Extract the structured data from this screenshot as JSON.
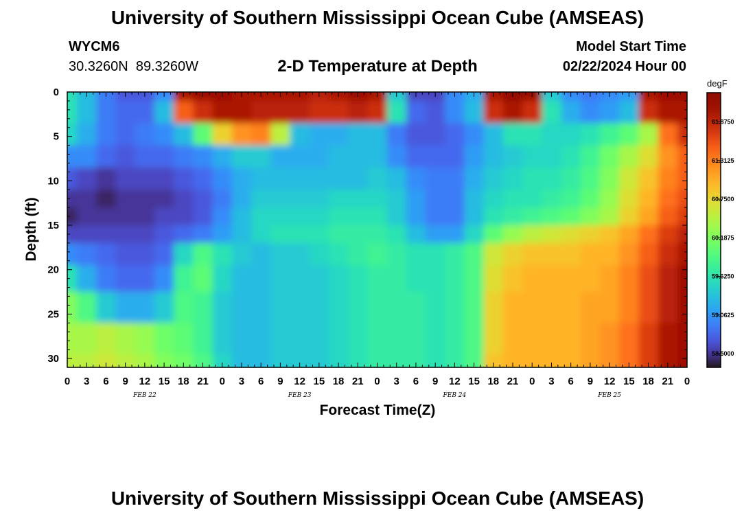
{
  "header": {
    "title": "University of Southern Mississippi Ocean Cube (AMSEAS)",
    "station_id": "WYCM6",
    "station_coords": "30.3260N  89.3260W",
    "plot_title": "2-D Temperature at Depth",
    "model_start_label": "Model Start Time",
    "model_start_value": "02/22/2024 Hour 00"
  },
  "footer": {
    "title": "University of Southern Mississippi Ocean Cube (AMSEAS)"
  },
  "colorbar": {
    "unit": "degF",
    "tick_labels": [
      "61.8750",
      "61.3125",
      "60.7500",
      "60.1875",
      "59.6250",
      "59.0625",
      "58.5000"
    ],
    "tick_values": [
      61.875,
      61.3125,
      60.75,
      60.1875,
      59.625,
      59.0625,
      58.5
    ],
    "range": [
      58.3,
      62.3
    ]
  },
  "chart_data": {
    "type": "heatmap",
    "title": "2-D Temperature at Depth",
    "xlabel": "Forecast Time(Z)",
    "ylabel": "Depth (ft)",
    "x_tick_labels": [
      "0",
      "3",
      "6",
      "9",
      "12",
      "15",
      "18",
      "21",
      "0",
      "3",
      "6",
      "9",
      "12",
      "15",
      "18",
      "21",
      "0",
      "3",
      "6",
      "9",
      "12",
      "15",
      "18",
      "21",
      "0",
      "3",
      "6",
      "9",
      "12",
      "15",
      "18",
      "21",
      "0"
    ],
    "day_labels": [
      {
        "label": "FEB 22",
        "hour": 12
      },
      {
        "label": "FEB 23",
        "hour": 36
      },
      {
        "label": "FEB 24",
        "hour": 60
      },
      {
        "label": "FEB 25",
        "hour": 84
      }
    ],
    "xlim": [
      0,
      96
    ],
    "ylim": [
      0,
      31
    ],
    "y_ticks": [
      0,
      5,
      10,
      15,
      20,
      25,
      30
    ],
    "y_inverted": true,
    "depths_ft": [
      0,
      2,
      5,
      7,
      10,
      12,
      14,
      16,
      18,
      21,
      24,
      28,
      31
    ],
    "hours": [
      0,
      3,
      6,
      9,
      12,
      15,
      18,
      21,
      24,
      27,
      30,
      33,
      36,
      39,
      42,
      45,
      48,
      51,
      54,
      57,
      60,
      63,
      66,
      69,
      72,
      75,
      78,
      81,
      84,
      87,
      90,
      93,
      96
    ],
    "temperature_degF": [
      [
        59.6,
        59.3,
        58.9,
        58.7,
        58.7,
        59.0,
        62.0,
        62.1,
        62.1,
        62.0,
        62.0,
        62.0,
        62.0,
        61.9,
        62.0,
        62.1,
        62.0,
        59.4,
        58.6,
        58.6,
        59.0,
        59.2,
        62.0,
        62.2,
        62.1,
        59.4,
        59.0,
        58.9,
        59.0,
        59.1,
        62.0,
        62.1,
        62.1
      ],
      [
        59.6,
        59.3,
        58.9,
        58.8,
        58.8,
        59.3,
        61.5,
        61.8,
        62.0,
        62.0,
        61.9,
        61.9,
        61.9,
        61.8,
        61.8,
        61.9,
        61.8,
        59.6,
        58.8,
        58.7,
        59.0,
        59.3,
        61.8,
        62.0,
        61.8,
        59.6,
        59.2,
        59.0,
        59.1,
        59.3,
        61.8,
        62.0,
        62.0
      ],
      [
        59.5,
        59.2,
        58.9,
        58.8,
        58.9,
        59.0,
        59.3,
        60.0,
        60.8,
        61.2,
        61.3,
        60.5,
        59.3,
        59.2,
        59.2,
        59.3,
        59.3,
        58.9,
        58.7,
        58.7,
        58.8,
        59.0,
        59.3,
        59.6,
        59.6,
        59.5,
        59.5,
        59.6,
        59.8,
        60.0,
        60.4,
        61.4,
        61.8
      ],
      [
        59.0,
        59.0,
        58.8,
        58.7,
        58.8,
        58.8,
        58.9,
        59.0,
        59.2,
        59.4,
        59.4,
        59.2,
        59.2,
        59.2,
        59.3,
        59.3,
        59.3,
        59.0,
        58.8,
        58.8,
        58.8,
        59.1,
        59.3,
        59.4,
        59.5,
        59.5,
        59.6,
        59.8,
        60.1,
        60.4,
        60.7,
        61.2,
        61.5
      ],
      [
        58.7,
        58.6,
        58.5,
        58.6,
        58.6,
        58.6,
        58.7,
        58.8,
        59.0,
        59.2,
        59.3,
        59.3,
        59.3,
        59.3,
        59.3,
        59.3,
        59.4,
        59.3,
        59.0,
        58.9,
        58.9,
        59.2,
        59.4,
        59.5,
        59.6,
        59.6,
        59.7,
        59.9,
        60.2,
        60.6,
        60.9,
        61.3,
        61.5
      ],
      [
        58.5,
        58.5,
        58.4,
        58.5,
        58.5,
        58.5,
        58.6,
        58.7,
        58.9,
        59.2,
        59.4,
        59.4,
        59.4,
        59.4,
        59.5,
        59.5,
        59.5,
        59.4,
        59.1,
        58.9,
        58.9,
        59.3,
        59.5,
        59.6,
        59.6,
        59.7,
        59.8,
        60.0,
        60.3,
        60.7,
        61.0,
        61.4,
        61.6
      ],
      [
        58.4,
        58.5,
        58.5,
        58.5,
        58.5,
        58.6,
        58.6,
        58.7,
        59.0,
        59.3,
        59.5,
        59.5,
        59.5,
        59.5,
        59.6,
        59.6,
        59.6,
        59.4,
        59.1,
        58.9,
        58.9,
        59.3,
        59.6,
        59.7,
        59.8,
        59.9,
        60.0,
        60.2,
        60.4,
        60.8,
        61.1,
        61.5,
        61.7
      ],
      [
        58.6,
        58.6,
        58.6,
        58.6,
        58.6,
        58.7,
        58.8,
        58.9,
        59.1,
        59.3,
        59.5,
        59.6,
        59.6,
        59.6,
        59.7,
        59.7,
        59.7,
        59.6,
        59.3,
        59.1,
        59.1,
        59.5,
        60.0,
        60.3,
        60.5,
        60.6,
        60.7,
        60.8,
        60.9,
        61.1,
        61.4,
        61.7,
        61.9
      ],
      [
        59.0,
        58.9,
        58.8,
        58.7,
        58.7,
        58.8,
        59.5,
        59.9,
        59.6,
        59.4,
        59.3,
        59.4,
        59.4,
        59.5,
        59.6,
        59.7,
        59.8,
        59.7,
        59.6,
        59.6,
        59.7,
        59.9,
        60.6,
        60.8,
        60.9,
        60.9,
        60.9,
        61.0,
        61.0,
        61.2,
        61.5,
        61.8,
        62.0
      ],
      [
        59.6,
        59.2,
        58.9,
        58.8,
        58.8,
        59.0,
        59.8,
        60.0,
        59.5,
        59.3,
        59.3,
        59.4,
        59.4,
        59.4,
        59.5,
        59.6,
        59.7,
        59.7,
        59.6,
        59.6,
        59.7,
        59.9,
        60.7,
        60.9,
        61.0,
        61.0,
        61.0,
        61.0,
        61.1,
        61.3,
        61.6,
        61.9,
        62.1
      ],
      [
        60.2,
        59.9,
        59.4,
        59.2,
        59.2,
        59.4,
        59.9,
        59.8,
        59.4,
        59.3,
        59.3,
        59.4,
        59.4,
        59.4,
        59.5,
        59.6,
        59.7,
        59.7,
        59.7,
        59.6,
        59.7,
        59.9,
        60.8,
        61.0,
        61.0,
        61.0,
        61.0,
        61.1,
        61.1,
        61.3,
        61.6,
        61.9,
        62.1
      ],
      [
        60.4,
        60.4,
        60.5,
        60.4,
        60.3,
        60.1,
        60.0,
        59.8,
        59.4,
        59.3,
        59.3,
        59.4,
        59.4,
        59.4,
        59.5,
        59.6,
        59.7,
        59.7,
        59.7,
        59.6,
        59.7,
        59.9,
        60.8,
        61.0,
        61.0,
        61.0,
        61.0,
        61.1,
        61.2,
        61.4,
        61.7,
        62.0,
        62.1
      ],
      [
        60.5,
        60.5,
        60.6,
        60.5,
        60.4,
        60.2,
        60.1,
        59.9,
        59.5,
        59.3,
        59.3,
        59.4,
        59.4,
        59.4,
        59.5,
        59.6,
        59.7,
        59.7,
        59.7,
        59.6,
        59.7,
        59.9,
        60.9,
        61.0,
        61.0,
        61.0,
        61.0,
        61.1,
        61.2,
        61.4,
        61.7,
        62.0,
        62.1
      ]
    ]
  }
}
